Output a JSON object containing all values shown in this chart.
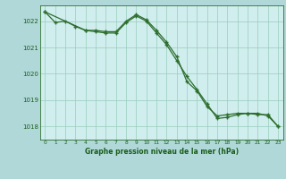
{
  "title": "Graphe pression niveau de la mer (hPa)",
  "fig_bg": "#b0d8d8",
  "plot_bg": "#d0eeee",
  "line_color": "#2d6e2d",
  "grid_color": "#99ccbb",
  "text_color": "#1a5c1a",
  "xlim": [
    -0.5,
    23.5
  ],
  "ylim": [
    1017.5,
    1022.6
  ],
  "yticks": [
    1018,
    1019,
    1020,
    1021,
    1022
  ],
  "xticks": [
    0,
    1,
    2,
    3,
    4,
    5,
    6,
    7,
    8,
    9,
    10,
    11,
    12,
    13,
    14,
    15,
    16,
    17,
    18,
    19,
    20,
    21,
    22,
    23
  ],
  "series1_x": [
    0,
    1,
    2,
    3,
    4,
    5,
    6,
    7,
    8,
    9,
    10,
    11,
    12,
    13,
    14,
    15,
    16,
    17,
    18,
    19,
    20,
    21,
    22,
    23
  ],
  "series1_y": [
    1022.35,
    1021.95,
    1022.0,
    1021.8,
    1021.65,
    1021.65,
    1021.6,
    1021.6,
    1022.0,
    1022.25,
    1022.05,
    1021.65,
    1021.2,
    1020.65,
    1019.7,
    1019.35,
    1018.75,
    1018.4,
    1018.45,
    1018.5,
    1018.5,
    1018.45,
    1018.45,
    1018.0
  ],
  "series2_x": [
    0,
    4,
    5,
    6,
    7,
    8,
    9,
    10,
    11,
    12,
    13,
    14,
    15,
    16,
    17,
    18,
    19,
    20,
    21,
    22,
    23
  ],
  "series2_y": [
    1022.35,
    1021.65,
    1021.6,
    1021.55,
    1021.55,
    1021.95,
    1022.2,
    1022.0,
    1021.55,
    1021.1,
    1020.5,
    1019.9,
    1019.4,
    1018.85,
    1018.3,
    1018.35,
    1018.45,
    1018.5,
    1018.5,
    1018.4,
    1018.0
  ]
}
